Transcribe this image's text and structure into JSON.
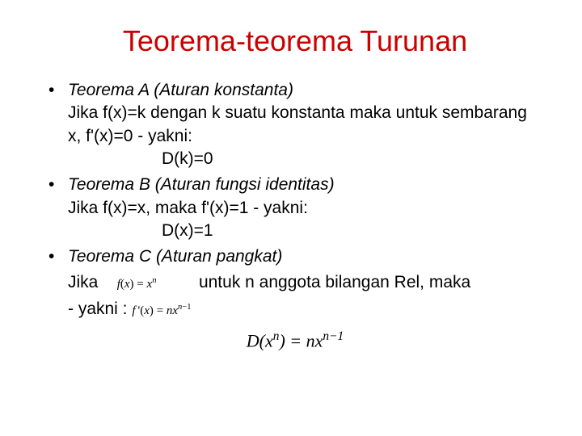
{
  "title": {
    "text": "Teorema-teorema Turunan",
    "color": "#cc0000",
    "fontsize": 36
  },
  "body": {
    "color": "#000000",
    "fontsize": 21
  },
  "bullet_char": "•",
  "theorems": [
    {
      "name": "Teorema A (Aturan konstanta)",
      "line1": "Jika f(x)=k dengan k suatu konstanta maka untuk sembarang x, f'(x)=0 - yakni:",
      "result": "D(k)=0"
    },
    {
      "name": "Teorema B (Aturan fungsi identitas)",
      "line1": "Jika f(x)=x, maka f'(x)=1 - yakni:",
      "result": "D(x)=1"
    },
    {
      "name": "Teorema C (Aturan pangkat)",
      "jika_pre": "Jika ",
      "jika_formula_html": "<span class='formula-small'><i>f</i>(<i>x</i>) = <i>x</i><span class='sup'><i>n</i></span></span>",
      "jika_post": " untuk n anggota bilangan Rel, maka",
      "yakni_pre": "- yakni : ",
      "yakni_formula_html": "<span class='formula-small'><i>f</i>&#8201;'(<i>x</i>) = <i>nx</i><span class='sup'><i>n</i>&minus;1</span></span>",
      "center_formula_html": "<i>D</i>(<i>x</i><span class='sup'><i>n</i></span>) = <i>nx</i><span class='sup'><i>n</i>&minus;1</span>"
    }
  ]
}
